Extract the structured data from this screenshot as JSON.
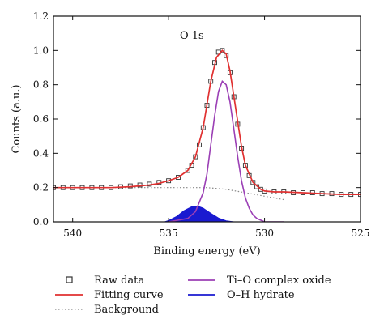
{
  "chart_data": {
    "type": "line",
    "title": "",
    "annotation": "O 1s",
    "xlabel": "Binding energy (eV)",
    "ylabel": "Counts (a.u.)",
    "xlim": [
      541,
      525
    ],
    "ylim": [
      0,
      1.2
    ],
    "x_reversed": true,
    "x_ticks": [
      540,
      535,
      530,
      525
    ],
    "y_ticks": [
      0.0,
      0.2,
      0.4,
      0.6,
      0.8,
      1.0,
      1.2
    ],
    "x_tick_labels": [
      "540",
      "535",
      "530",
      "525"
    ],
    "y_tick_labels": [
      "0.0",
      "0.2",
      "0.4",
      "0.6",
      "0.8",
      "1.0",
      "1.2"
    ],
    "grid": false,
    "legend_position": "bottom",
    "legend": [
      {
        "label": "Raw data",
        "style": "square-marker",
        "color": "#333333"
      },
      {
        "label": "Fitting curve",
        "style": "solid-line",
        "color": "#e03030"
      },
      {
        "label": "Background",
        "style": "dotted-line",
        "color": "#888888"
      },
      {
        "label": "Ti–O complex oxide",
        "style": "solid-line",
        "color": "#9b3fb5"
      },
      {
        "label": "O–H hydrate",
        "style": "filled-area",
        "color": "#1a1ad0"
      }
    ],
    "series": [
      {
        "name": "Raw data",
        "kind": "markers",
        "color": "#333333",
        "x": [
          541,
          540.5,
          540,
          539.5,
          539,
          538.5,
          538,
          537.5,
          537,
          536.5,
          536,
          535.5,
          535,
          534.5,
          534,
          533.8,
          533.6,
          533.4,
          533.2,
          533,
          532.8,
          532.6,
          532.4,
          532.2,
          532,
          531.8,
          531.6,
          531.4,
          531.2,
          531,
          530.8,
          530.6,
          530.4,
          530.2,
          530,
          529.5,
          529,
          528.5,
          528,
          527.5,
          527,
          526.5,
          526,
          525.5,
          525
        ],
        "y": [
          0.2,
          0.2,
          0.2,
          0.2,
          0.2,
          0.2,
          0.2,
          0.205,
          0.21,
          0.215,
          0.22,
          0.23,
          0.24,
          0.26,
          0.3,
          0.33,
          0.38,
          0.45,
          0.55,
          0.68,
          0.82,
          0.93,
          0.99,
          1.0,
          0.97,
          0.87,
          0.73,
          0.57,
          0.43,
          0.33,
          0.27,
          0.23,
          0.205,
          0.19,
          0.18,
          0.175,
          0.175,
          0.17,
          0.17,
          0.17,
          0.165,
          0.165,
          0.16,
          0.16,
          0.16
        ]
      },
      {
        "name": "Fitting curve",
        "kind": "line",
        "color": "#e03030",
        "x": [
          541,
          540,
          539,
          538,
          537,
          536,
          535.5,
          535,
          534.5,
          534,
          533.6,
          533.2,
          532.8,
          532.5,
          532.2,
          532,
          531.8,
          531.5,
          531.2,
          531,
          530.6,
          530.2,
          530,
          529.5,
          529,
          528,
          527,
          526,
          525
        ],
        "y": [
          0.2,
          0.2,
          0.2,
          0.2,
          0.205,
          0.215,
          0.225,
          0.24,
          0.26,
          0.3,
          0.38,
          0.55,
          0.82,
          0.96,
          1.0,
          0.98,
          0.88,
          0.66,
          0.44,
          0.33,
          0.23,
          0.19,
          0.18,
          0.175,
          0.175,
          0.17,
          0.165,
          0.16,
          0.16
        ]
      },
      {
        "name": "Background",
        "kind": "dotted",
        "color": "#888888",
        "x": [
          541,
          540,
          539,
          538,
          537,
          536,
          535,
          534,
          533.5,
          533,
          532.5,
          532,
          531.5,
          531,
          530.5,
          530,
          529.5,
          529
        ],
        "y": [
          0.2,
          0.2,
          0.2,
          0.2,
          0.2,
          0.2,
          0.2,
          0.2,
          0.2,
          0.2,
          0.195,
          0.19,
          0.18,
          0.17,
          0.16,
          0.15,
          0.14,
          0.13
        ]
      },
      {
        "name": "Ti–O complex oxide",
        "kind": "line",
        "color": "#9b3fb5",
        "x": [
          535,
          534,
          533.6,
          533.2,
          533,
          532.8,
          532.6,
          532.4,
          532.2,
          532,
          531.8,
          531.6,
          531.4,
          531.2,
          531,
          530.8,
          530.6,
          530.4,
          530.2,
          530,
          529.6,
          529
        ],
        "y": [
          0.0,
          0.02,
          0.06,
          0.17,
          0.28,
          0.45,
          0.62,
          0.76,
          0.82,
          0.8,
          0.7,
          0.54,
          0.38,
          0.24,
          0.14,
          0.08,
          0.04,
          0.02,
          0.01,
          0.0,
          0.0,
          0.0
        ]
      },
      {
        "name": "O–H hydrate",
        "kind": "area",
        "color": "#1a1ad0",
        "x": [
          535.2,
          535,
          534.6,
          534.2,
          533.8,
          533.5,
          533.2,
          532.8,
          532.4,
          532,
          531.6
        ],
        "y": [
          0.0,
          0.008,
          0.03,
          0.065,
          0.088,
          0.092,
          0.08,
          0.05,
          0.022,
          0.006,
          0.0
        ]
      }
    ]
  }
}
